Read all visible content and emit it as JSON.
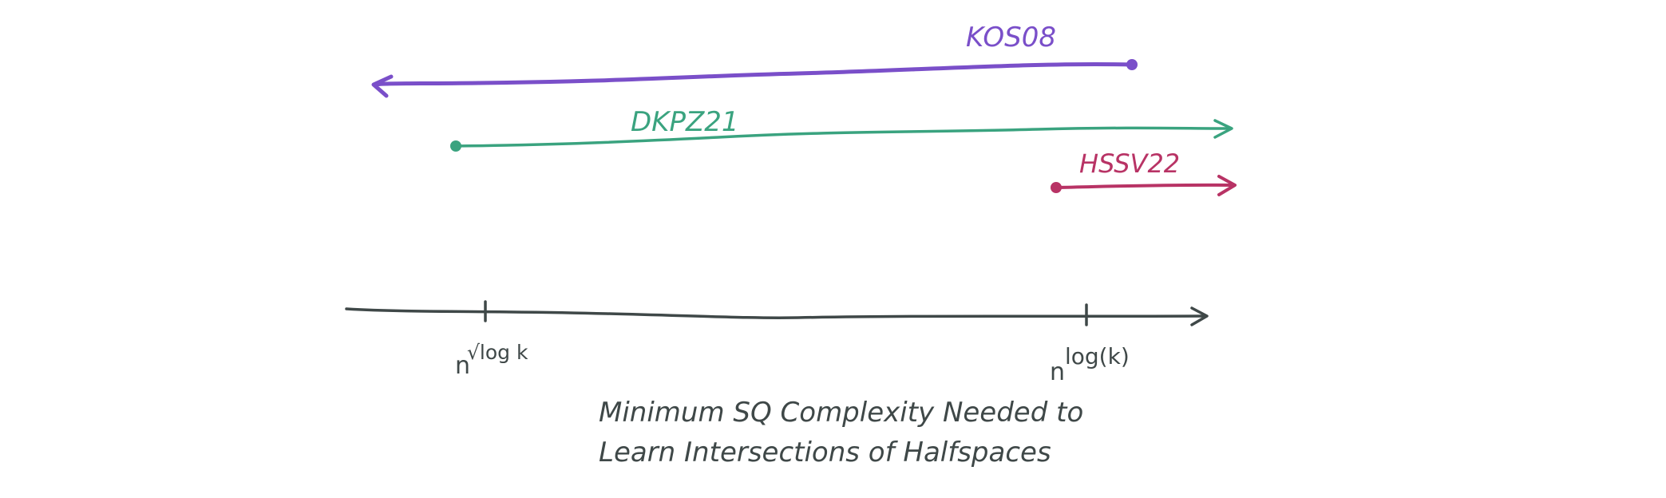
{
  "axis": {
    "ticks": [
      {
        "base": "n",
        "exponent": "√log k"
      },
      {
        "base": "n",
        "exponent": "log(k)"
      }
    ],
    "caption_line1": "Minimum SQ Complexity Needed to",
    "caption_line2": "Learn Intersections of Halfspaces"
  },
  "ranges": [
    {
      "label": "KOS08",
      "color": "#7a4fc9",
      "direction": "left"
    },
    {
      "label": "DKPZ21",
      "color": "#3aa37f",
      "direction": "right"
    },
    {
      "label": "HSSV22",
      "color": "#b83365",
      "direction": "right"
    }
  ],
  "colors": {
    "axis": "#3f4848"
  }
}
